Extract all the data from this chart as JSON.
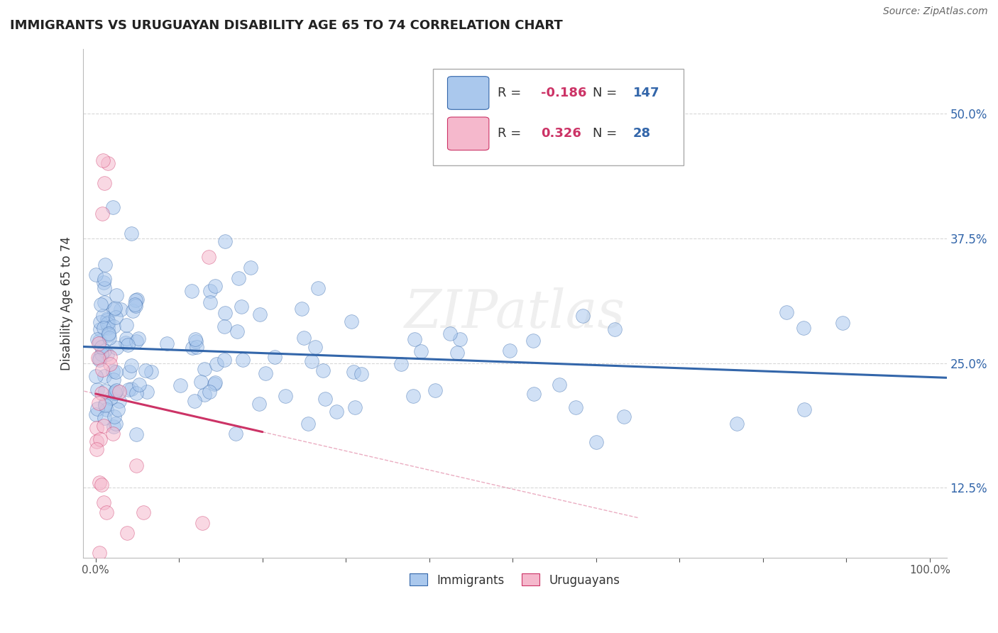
{
  "title": "IMMIGRANTS VS URUGUAYAN DISABILITY AGE 65 TO 74 CORRELATION CHART",
  "source": "Source: ZipAtlas.com",
  "ylabel": "Disability Age 65 to 74",
  "ytick_positions": [
    0.125,
    0.25,
    0.375,
    0.5
  ],
  "ytick_labels": [
    "12.5%",
    "25.0%",
    "37.5%",
    "50.0%"
  ],
  "grid_color": "#d8d8d8",
  "background_color": "#ffffff",
  "immigrants_color": "#aac8ed",
  "uruguayans_color": "#f5b8cc",
  "immigrants_line_color": "#3366aa",
  "uruguayans_line_color": "#cc3366",
  "legend_R1": "-0.186",
  "legend_N1": "147",
  "legend_R2": "0.326",
  "legend_N2": "28",
  "watermark": "ZIPatlas",
  "imm_seed": 12345,
  "uru_seed": 67890
}
